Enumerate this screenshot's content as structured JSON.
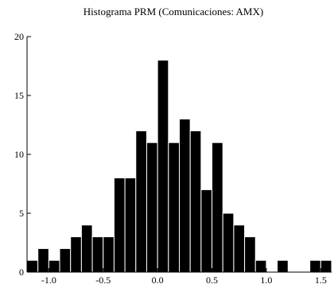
{
  "chart_data": {
    "type": "bar",
    "title": "Histograma PRM (Comunicaciones: AMX)",
    "xlabel": "",
    "ylabel": "",
    "bin_start": -1.2,
    "bin_width": 0.1,
    "values": [
      1,
      2,
      1,
      2,
      3,
      4,
      3,
      3,
      8,
      8,
      12,
      11,
      18,
      11,
      13,
      12,
      7,
      11,
      5,
      4,
      3,
      1,
      0,
      1,
      0,
      0,
      1,
      1
    ],
    "xlim": [
      -1.2,
      1.6
    ],
    "ylim": [
      0,
      20
    ],
    "x_ticks": [
      -1.0,
      -0.5,
      0.0,
      0.5,
      1.0,
      1.5
    ],
    "x_tick_labels": [
      "-1.0",
      "-0.5",
      "0.0",
      "0.5",
      "1.0",
      "1.5"
    ],
    "y_ticks": [
      0,
      5,
      10,
      15,
      20
    ],
    "y_tick_labels": [
      "0",
      "5",
      "10",
      "15",
      "20"
    ],
    "bar_color": "#000000",
    "grid": false
  }
}
